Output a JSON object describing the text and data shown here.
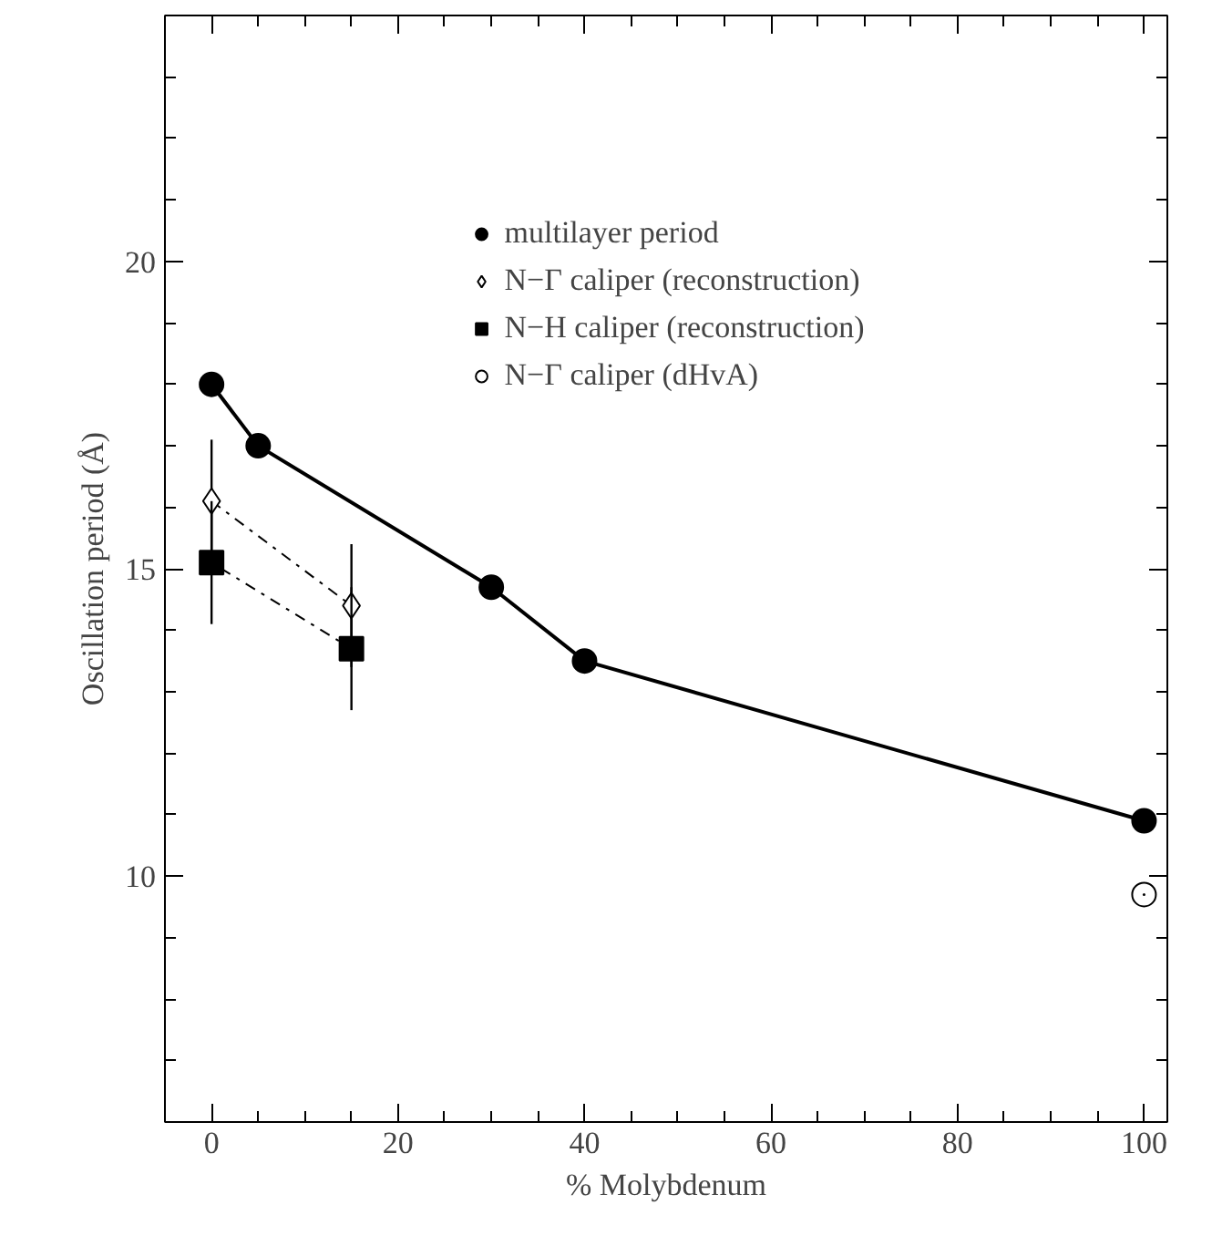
{
  "chart_data": {
    "type": "line",
    "xlabel": "% Molybdenum",
    "ylabel": "Oscillation period (Å)",
    "xlim": [
      -5,
      102.5
    ],
    "ylim": [
      6,
      24
    ],
    "xticks": [
      0,
      20,
      40,
      60,
      80,
      100
    ],
    "yticks": [
      10,
      15,
      20
    ],
    "grid": false,
    "legend": "top",
    "series": [
      {
        "name": "multilayer period",
        "color": "#000000",
        "marker": "circle",
        "line_style": "solid",
        "x": [
          0,
          5,
          30,
          40,
          100
        ],
        "values": [
          18,
          17,
          14.7,
          13.5,
          10.9
        ]
      },
      {
        "name": "N−Γ caliper (reconstruction)",
        "color": "#000000",
        "marker": "diamond",
        "line_style": "dashed",
        "x": [
          0,
          15
        ],
        "values": [
          16.1,
          14.4
        ],
        "errors": [
          1,
          1
        ]
      },
      {
        "name": "N−H caliper (reconstruction)",
        "color": "#000000",
        "marker": "square",
        "line_style": "dotted",
        "x": [
          0,
          15
        ],
        "values": [
          15.1,
          13.7
        ],
        "errors": [
          1,
          1
        ]
      },
      {
        "name": "N−Γ caliper (dHvA)",
        "color": "#000000",
        "marker": "circle",
        "x": [
          100
        ],
        "values": [
          9.7
        ]
      }
    ]
  }
}
